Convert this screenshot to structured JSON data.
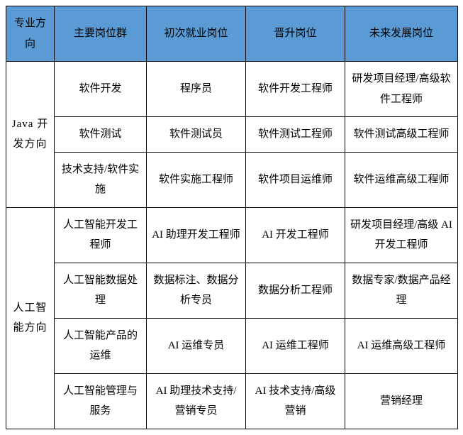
{
  "table": {
    "header_bg": "#5b9bd5",
    "border_color": "#000000",
    "columns": {
      "direction": "专业方向",
      "main_group": "主要岗位群",
      "first_job": "初次就业岗位",
      "promotion": "晋升岗位",
      "future": "未来发展岗位"
    },
    "sections": [
      {
        "direction": "Java 开发方向",
        "rows": [
          {
            "main": "软件开发",
            "first": "程序员",
            "promotion": "软件开发工程师",
            "future": "研发项目经理/高级软件工程师"
          },
          {
            "main": "软件测试",
            "first": "软件测试员",
            "promotion": "软件测试工程师",
            "future": "软件测试高级工程师"
          },
          {
            "main": "技术支持/软件实施",
            "first": "软件实施工程师",
            "promotion": "软件项目运维师",
            "future": "软件运维高级工程师"
          }
        ]
      },
      {
        "direction": "人工智能方向",
        "rows": [
          {
            "main": "人工智能开发工程师",
            "first": "AI 助理开发工程师",
            "promotion": "AI 开发工程师",
            "future": "研发项目经理/高级 AI 开发工程师"
          },
          {
            "main": "人工智能数据处理",
            "first": "数据标注、数据分析专员",
            "promotion": "数据分析工程师",
            "future": "数据专家/数据产品经理"
          },
          {
            "main": "人工智能产品的运维",
            "first": "AI 运维专员",
            "promotion": "AI 运维工程师",
            "future": "AI 运维高级工程师"
          },
          {
            "main": "人工智能管理与服务",
            "first": "AI 助理技术支持/营销专员",
            "promotion": "AI 技术支持/高级营销",
            "future": "营销经理"
          }
        ]
      }
    ]
  }
}
